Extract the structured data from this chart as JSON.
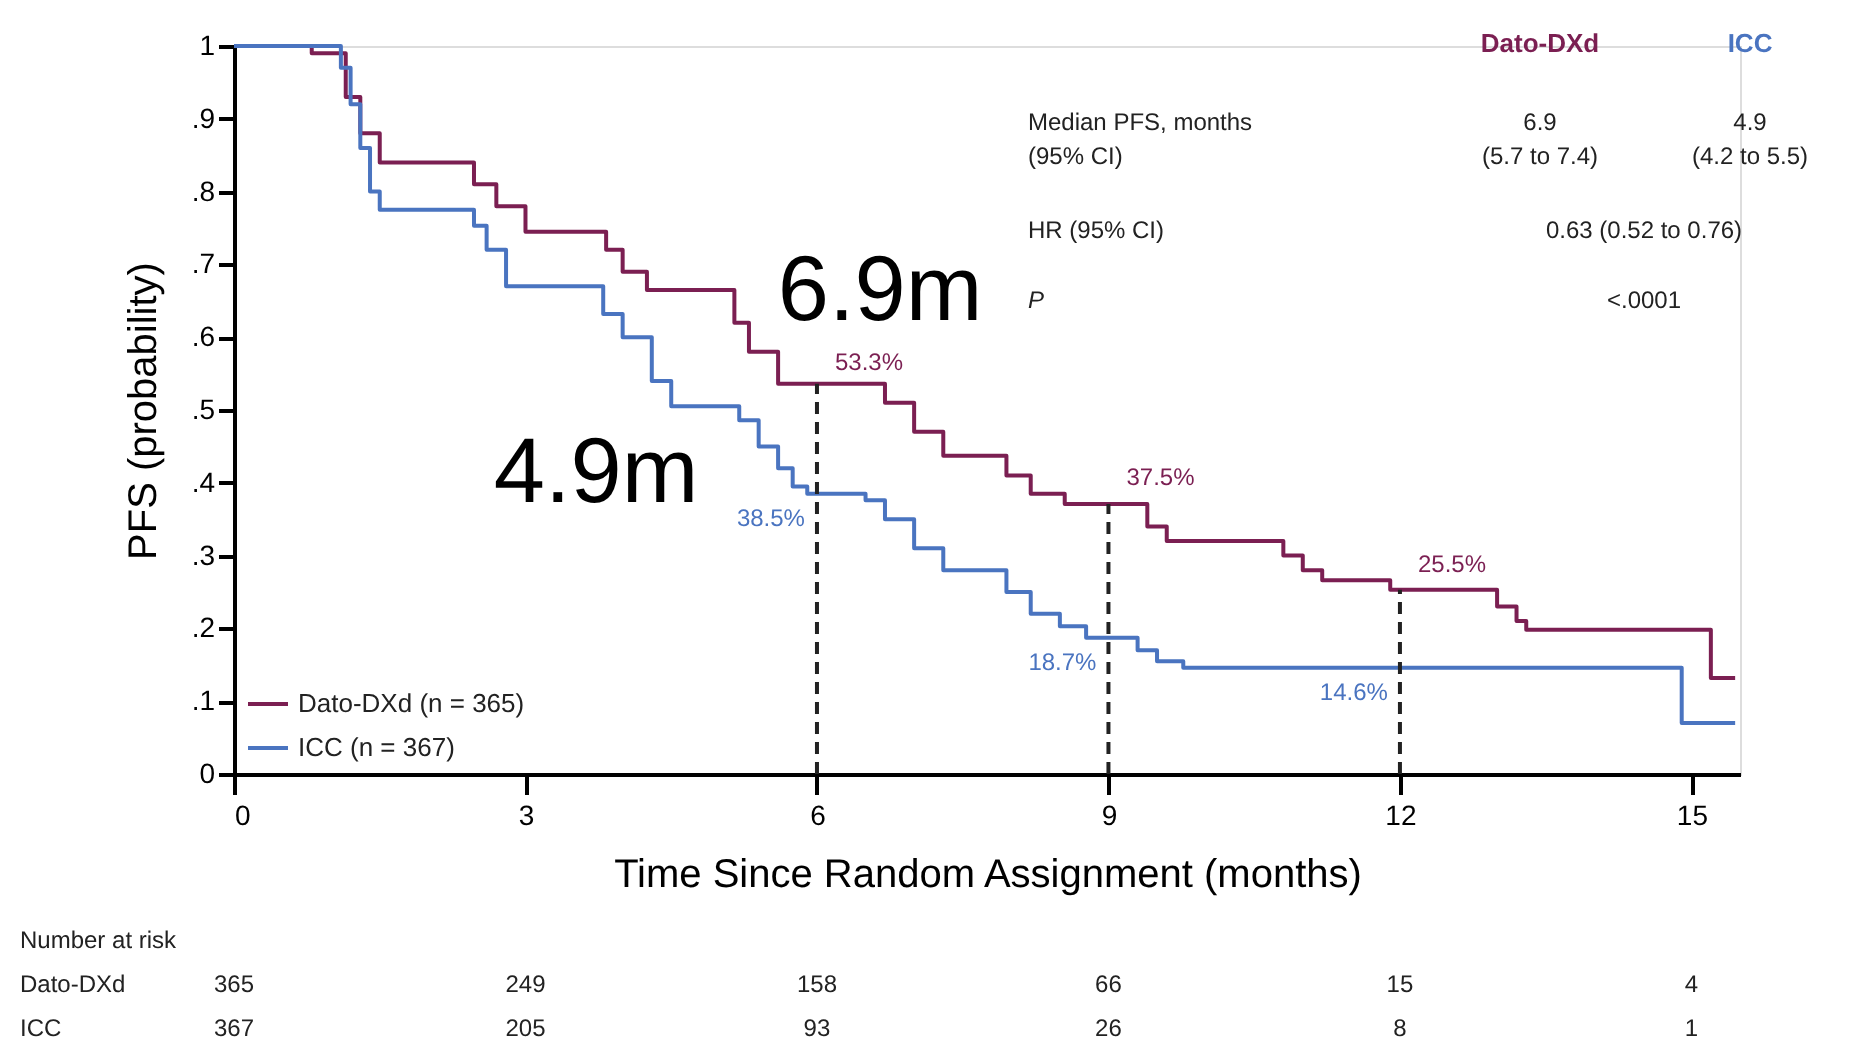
{
  "chart_data": {
    "type": "step",
    "xlabel": "Time Since Random Assignment (months)",
    "ylabel": "PFS (probability)",
    "xlim": [
      0,
      15.5
    ],
    "xticks": [
      0,
      3,
      6,
      9,
      12,
      15
    ],
    "ylim": [
      0,
      1
    ],
    "yticks": [
      0,
      {
        "value": 0.1,
        "label": ".1"
      },
      {
        "value": 0.2,
        "label": ".2"
      },
      {
        "value": 0.3,
        "label": ".3"
      },
      {
        "value": 0.4,
        "label": ".4"
      },
      {
        "value": 0.5,
        "label": ".5"
      },
      {
        "value": 0.6,
        "label": ".6"
      },
      {
        "value": 0.7,
        "label": ".7"
      },
      {
        "value": 0.8,
        "label": ".8"
      },
      {
        "value": 0.9,
        "label": ".9"
      },
      1
    ],
    "grid": false,
    "legend": "bottom left",
    "line_style": "solid",
    "series": [
      {
        "name": "Dato-DXd (n = 365)",
        "color": "#7b1f52",
        "x": [
          0,
          0.8,
          1.15,
          1.3,
          1.5,
          2.47,
          2.7,
          3.0,
          3.83,
          4.0,
          4.25,
          5.15,
          5.3,
          5.6,
          6.7,
          7.0,
          7.3,
          7.95,
          8.2,
          8.55,
          9.4,
          9.6,
          10.8,
          11.0,
          11.2,
          11.9,
          13.0,
          13.2,
          13.3,
          15.2,
          15.45
        ],
        "values": [
          1.0,
          0.99,
          0.93,
          0.88,
          0.84,
          0.81,
          0.78,
          0.745,
          0.72,
          0.69,
          0.665,
          0.62,
          0.58,
          0.536,
          0.51,
          0.47,
          0.437,
          0.41,
          0.385,
          0.371,
          0.34,
          0.32,
          0.3,
          0.28,
          0.266,
          0.253,
          0.23,
          0.21,
          0.198,
          0.132,
          0.132
        ]
      },
      {
        "name": "ICC (n = 367)",
        "color": "#4a74c0",
        "x": [
          0,
          1.1,
          1.2,
          1.3,
          1.4,
          1.5,
          2.47,
          2.6,
          2.8,
          3.8,
          4.0,
          4.3,
          4.5,
          5.2,
          5.4,
          5.6,
          5.75,
          5.9,
          6.5,
          6.7,
          7.0,
          7.3,
          7.95,
          8.2,
          8.5,
          8.77,
          9.3,
          9.5,
          9.77,
          14.9,
          15.45
        ],
        "values": [
          1.0,
          0.97,
          0.92,
          0.86,
          0.8,
          0.775,
          0.753,
          0.72,
          0.67,
          0.632,
          0.6,
          0.54,
          0.505,
          0.486,
          0.45,
          0.42,
          0.395,
          0.385,
          0.376,
          0.35,
          0.31,
          0.28,
          0.25,
          0.22,
          0.203,
          0.187,
          0.17,
          0.155,
          0.146,
          0.07,
          0.07
        ]
      }
    ],
    "ref_lines": [
      {
        "axis": "x",
        "value": 6,
        "label": null,
        "line_style": "dashed",
        "color": "#222222"
      },
      {
        "axis": "x",
        "value": 9,
        "label": null,
        "line_style": "dashed",
        "color": "#222222"
      },
      {
        "axis": "x",
        "value": 12,
        "label": null,
        "line_style": "dashed",
        "color": "#222222"
      }
    ],
    "annotations": [
      "6.9m",
      "4.9m",
      {
        "text": "53.3%",
        "x": 6,
        "y": 0.533
      },
      {
        "text": "38.5%",
        "x": 6,
        "y": 0.385
      },
      {
        "text": "37.5%",
        "x": 9,
        "y": 0.375
      },
      {
        "text": "18.7%",
        "x": 9,
        "y": 0.187
      },
      {
        "text": "25.5%",
        "x": 12,
        "y": 0.255
      },
      {
        "text": "14.6%",
        "x": 12,
        "y": 0.146
      },
      "Dato-DXd",
      "ICC",
      "Median PFS, months",
      "(95% CI)",
      "6.9",
      "(5.7 to 7.4)",
      "4.9",
      "(4.2 to 5.5)",
      "HR (95% CI)",
      "0.63 (0.52 to 0.76)",
      "P",
      "<.0001",
      "Number at risk",
      "Dato-DXd",
      "365",
      "249",
      "158",
      "66",
      "15",
      "4",
      "ICC",
      "367",
      "205",
      "93",
      "26",
      "8",
      "1"
    ]
  }
}
